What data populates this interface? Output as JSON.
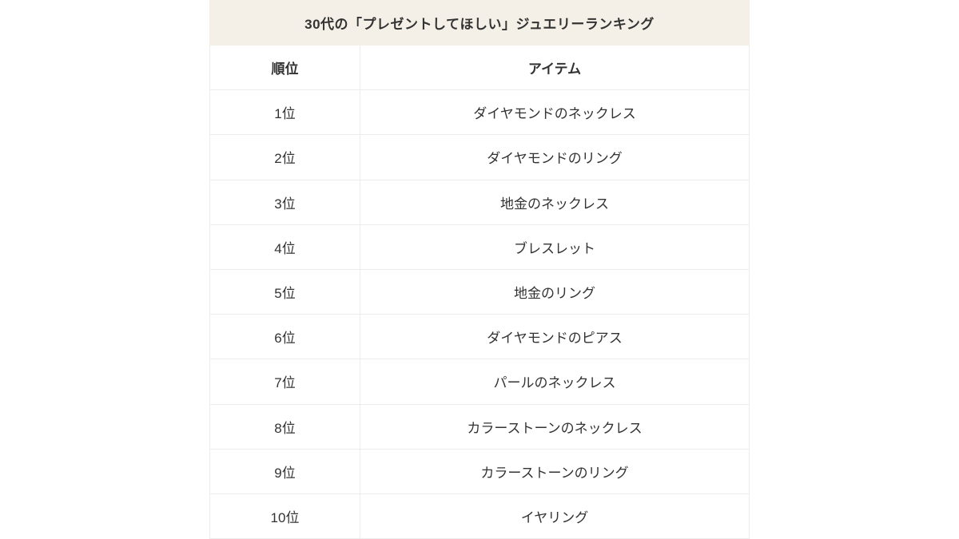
{
  "table": {
    "title": "30代の「プレゼントしてほしい」ジュエリーランキング",
    "columns": {
      "rank": "順位",
      "item": "アイテム"
    },
    "rows": [
      {
        "rank": "1位",
        "item": "ダイヤモンドのネックレス"
      },
      {
        "rank": "2位",
        "item": "ダイヤモンドのリング"
      },
      {
        "rank": "3位",
        "item": "地金のネックレス"
      },
      {
        "rank": "4位",
        "item": "ブレスレット"
      },
      {
        "rank": "5位",
        "item": "地金のリング"
      },
      {
        "rank": "6位",
        "item": "ダイヤモンドのピアス"
      },
      {
        "rank": "7位",
        "item": "パールのネックレス"
      },
      {
        "rank": "8位",
        "item": "カラーストーンのネックレス"
      },
      {
        "rank": "9位",
        "item": "カラーストーンのリング"
      },
      {
        "rank": "10位",
        "item": "イヤリング"
      }
    ]
  },
  "colors": {
    "title_background": "#f5f0e7",
    "border": "#ececec",
    "text": "#333333",
    "page_background": "#ffffff"
  }
}
